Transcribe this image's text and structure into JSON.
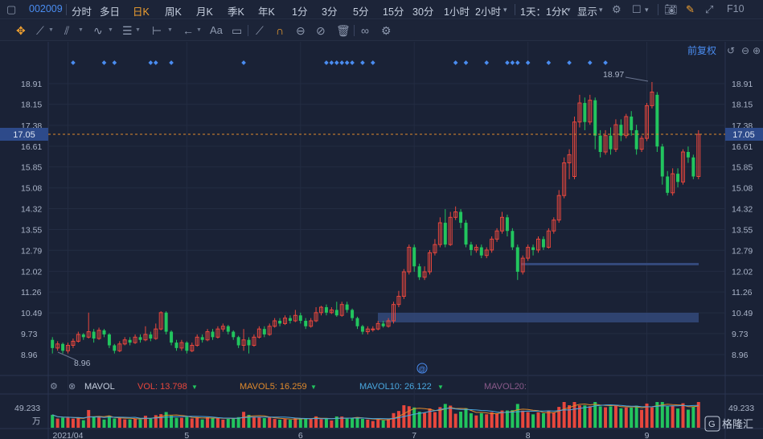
{
  "toolbar": {
    "code": "002009",
    "periods": [
      "分时",
      "多日",
      "日K",
      "周K",
      "月K",
      "季K",
      "年K",
      "1分",
      "3分",
      "5分",
      "15分",
      "30分",
      "1小时",
      "2小时"
    ],
    "active_period": "日K",
    "period_dropdown": "1天：1分K",
    "display_dropdown": "显示",
    "f10": "F10"
  },
  "drawbar": {
    "text_tool": "Aa"
  },
  "chart": {
    "adjust_label": "前复权",
    "current_price": "17.05",
    "current_price_value": 17.05,
    "high_label": "18.97",
    "low_label": "8.96",
    "colors": {
      "up": "#e8473d",
      "down": "#22c55e",
      "price_line": "#e08a2c",
      "bg": "#1a2236",
      "grid": "#232c42",
      "zone": "#3a5080",
      "accent": "#4a8cf0"
    }
  },
  "chart_data": {
    "type": "candlestick",
    "y_axis_ticks": [
      "18.91",
      "18.15",
      "17.38",
      "16.61",
      "15.85",
      "15.08",
      "14.32",
      "13.55",
      "12.79",
      "12.02",
      "11.26",
      "10.49",
      "9.73",
      "8.96"
    ],
    "y_axis_values": [
      18.91,
      18.15,
      17.38,
      16.61,
      15.85,
      15.08,
      14.32,
      13.55,
      12.79,
      12.02,
      11.26,
      10.49,
      9.73,
      8.96
    ],
    "x_axis_ticks": [
      "2021/04",
      "5",
      "6",
      "7",
      "8",
      "9"
    ],
    "candles": [
      [
        9.5,
        9.2,
        9.6,
        9.0
      ],
      [
        9.2,
        9.35,
        9.45,
        9.1
      ],
      [
        9.35,
        9.1,
        9.4,
        9.0
      ],
      [
        9.1,
        9.3,
        9.4,
        9.0
      ],
      [
        9.3,
        9.45,
        9.55,
        9.2
      ],
      [
        9.45,
        9.7,
        9.8,
        9.4
      ],
      [
        9.7,
        9.6,
        9.75,
        9.5
      ],
      [
        9.6,
        9.8,
        10.5,
        9.55
      ],
      [
        9.8,
        9.55,
        9.9,
        9.4
      ],
      [
        9.55,
        9.85,
        9.95,
        9.5
      ],
      [
        9.85,
        9.7,
        9.9,
        9.6
      ],
      [
        9.7,
        9.3,
        9.75,
        9.2
      ],
      [
        9.3,
        9.1,
        9.35,
        9.0
      ],
      [
        9.1,
        9.35,
        9.45,
        9.05
      ],
      [
        9.35,
        9.5,
        9.6,
        9.3
      ],
      [
        9.5,
        9.4,
        9.6,
        9.3
      ],
      [
        9.4,
        9.6,
        9.7,
        9.35
      ],
      [
        9.6,
        9.5,
        9.7,
        9.4
      ],
      [
        9.5,
        9.7,
        10.0,
        9.45
      ],
      [
        9.7,
        9.55,
        9.8,
        9.45
      ],
      [
        9.55,
        9.9,
        10.1,
        9.5
      ],
      [
        9.9,
        10.5,
        10.55,
        9.85
      ],
      [
        10.5,
        9.8,
        10.55,
        9.7
      ],
      [
        9.8,
        9.4,
        9.85,
        9.3
      ],
      [
        9.4,
        9.2,
        9.5,
        9.1
      ],
      [
        9.2,
        9.4,
        9.5,
        9.1
      ],
      [
        9.4,
        9.1,
        9.45,
        9.0
      ],
      [
        9.1,
        9.3,
        9.4,
        9.05
      ],
      [
        9.3,
        9.6,
        9.7,
        9.25
      ],
      [
        9.6,
        9.5,
        9.7,
        9.4
      ],
      [
        9.5,
        9.8,
        9.9,
        9.45
      ],
      [
        9.8,
        9.6,
        9.9,
        9.5
      ],
      [
        9.6,
        9.9,
        10.0,
        9.55
      ],
      [
        9.9,
        10.0,
        10.1,
        9.8
      ],
      [
        10.0,
        9.8,
        10.05,
        9.7
      ],
      [
        9.8,
        9.6,
        9.85,
        9.5
      ],
      [
        9.6,
        9.3,
        9.65,
        9.2
      ],
      [
        9.3,
        9.5,
        9.9,
        9.1
      ],
      [
        9.5,
        9.3,
        9.6,
        9.0
      ],
      [
        9.3,
        9.6,
        9.7,
        9.25
      ],
      [
        9.6,
        9.9,
        10.0,
        9.55
      ],
      [
        9.9,
        9.7,
        10.0,
        9.6
      ],
      [
        9.7,
        10.0,
        10.1,
        9.65
      ],
      [
        10.0,
        10.2,
        10.3,
        9.95
      ],
      [
        10.2,
        10.1,
        10.3,
        10.0
      ],
      [
        10.1,
        10.3,
        10.4,
        10.05
      ],
      [
        10.3,
        10.2,
        10.4,
        10.1
      ],
      [
        10.2,
        10.4,
        10.6,
        10.15
      ],
      [
        10.4,
        10.2,
        10.5,
        10.1
      ],
      [
        10.2,
        10.0,
        10.3,
        9.9
      ],
      [
        10.0,
        10.2,
        10.3,
        9.95
      ],
      [
        10.2,
        10.5,
        10.7,
        10.15
      ],
      [
        10.5,
        10.7,
        10.75,
        10.4
      ],
      [
        10.7,
        10.5,
        10.8,
        10.4
      ],
      [
        10.5,
        10.6,
        10.7,
        10.45
      ],
      [
        10.6,
        10.4,
        10.9,
        10.35
      ],
      [
        10.4,
        10.8,
        10.9,
        10.35
      ],
      [
        10.8,
        10.6,
        10.9,
        10.5
      ],
      [
        10.6,
        10.3,
        10.65,
        10.2
      ],
      [
        10.3,
        10.0,
        10.35,
        9.9
      ],
      [
        10.0,
        9.8,
        10.05,
        9.7
      ],
      [
        9.8,
        9.9,
        10.0,
        9.7
      ],
      [
        9.9,
        9.9,
        10.0,
        9.8
      ],
      [
        9.9,
        10.1,
        10.2,
        9.85
      ],
      [
        10.1,
        10.0,
        10.2,
        9.95
      ],
      [
        10.0,
        10.2,
        10.3,
        9.95
      ],
      [
        10.2,
        10.8,
        10.9,
        10.1
      ],
      [
        10.8,
        11.1,
        11.3,
        10.7
      ],
      [
        11.1,
        12.0,
        12.1,
        11.0
      ],
      [
        12.0,
        12.9,
        13.0,
        11.9
      ],
      [
        12.9,
        12.2,
        13.0,
        12.0
      ],
      [
        12.2,
        11.8,
        12.3,
        11.7
      ],
      [
        11.8,
        12.0,
        12.2,
        11.7
      ],
      [
        12.0,
        12.7,
        12.8,
        11.9
      ],
      [
        12.7,
        13.0,
        13.2,
        12.6
      ],
      [
        13.0,
        13.8,
        14.0,
        12.9
      ],
      [
        13.8,
        13.0,
        14.3,
        12.9
      ],
      [
        13.0,
        14.0,
        14.2,
        12.95
      ],
      [
        14.0,
        14.2,
        14.4,
        13.9
      ],
      [
        14.2,
        13.8,
        14.3,
        13.6
      ],
      [
        13.8,
        13.0,
        13.9,
        12.9
      ],
      [
        13.0,
        12.8,
        13.1,
        12.6
      ],
      [
        12.8,
        12.9,
        13.0,
        12.7
      ],
      [
        12.9,
        12.6,
        13.0,
        12.5
      ],
      [
        12.6,
        12.8,
        12.9,
        12.5
      ],
      [
        12.8,
        13.2,
        13.3,
        12.7
      ],
      [
        13.2,
        13.5,
        13.6,
        13.1
      ],
      [
        13.5,
        14.0,
        14.2,
        13.4
      ],
      [
        14.0,
        13.5,
        14.1,
        13.3
      ],
      [
        13.5,
        12.9,
        13.6,
        12.8
      ],
      [
        12.9,
        12.0,
        13.0,
        11.7
      ],
      [
        12.0,
        12.5,
        12.6,
        11.9
      ],
      [
        12.5,
        12.9,
        13.0,
        12.4
      ],
      [
        12.9,
        12.8,
        13.0,
        12.6
      ],
      [
        12.8,
        13.2,
        13.3,
        12.7
      ],
      [
        13.2,
        12.9,
        13.3,
        12.8
      ],
      [
        12.9,
        13.5,
        13.6,
        12.85
      ],
      [
        13.5,
        13.9,
        14.0,
        13.4
      ],
      [
        13.9,
        14.8,
        15.0,
        13.8
      ],
      [
        14.8,
        16.0,
        16.2,
        14.7
      ],
      [
        16.0,
        16.3,
        16.5,
        15.4
      ],
      [
        15.5,
        17.5,
        17.7,
        15.4
      ],
      [
        17.5,
        18.2,
        18.5,
        17.3
      ],
      [
        18.2,
        17.5,
        18.4,
        17.2
      ],
      [
        17.5,
        18.3,
        18.5,
        17.4
      ],
      [
        18.3,
        17.0,
        18.4,
        16.5
      ],
      [
        17.0,
        16.4,
        17.2,
        16.2
      ],
      [
        16.4,
        17.0,
        17.2,
        16.3
      ],
      [
        17.0,
        16.5,
        17.3,
        16.3
      ],
      [
        16.5,
        17.4,
        17.6,
        16.4
      ],
      [
        17.4,
        17.0,
        17.6,
        16.8
      ],
      [
        17.0,
        17.7,
        17.8,
        16.9
      ],
      [
        17.7,
        17.2,
        17.9,
        17.0
      ],
      [
        17.2,
        16.5,
        17.4,
        16.3
      ],
      [
        16.5,
        16.9,
        17.0,
        16.4
      ],
      [
        16.9,
        18.1,
        18.2,
        16.8
      ],
      [
        18.1,
        18.6,
        18.97,
        18.0
      ],
      [
        18.5,
        16.6,
        18.6,
        16.4
      ],
      [
        16.6,
        15.5,
        16.7,
        15.2
      ],
      [
        15.5,
        14.9,
        15.7,
        14.8
      ],
      [
        14.9,
        15.6,
        15.8,
        14.8
      ],
      [
        15.6,
        15.3,
        15.8,
        15.1
      ],
      [
        15.3,
        16.4,
        16.5,
        15.2
      ],
      [
        16.4,
        16.2,
        16.6,
        16.0
      ],
      [
        16.2,
        15.5,
        16.3,
        15.4
      ],
      [
        15.5,
        17.05,
        17.2,
        15.4
      ]
    ],
    "volume_ylabel": "49.233",
    "volume_unit": "万",
    "indicator": "MAVOL",
    "vol_label": "VOL: 13.798",
    "mavol5_label": "MAVOL5: 16.259",
    "mavol10_label": "MAVOL10: 26.122",
    "mavol20_label": "MAVOL20:"
  },
  "watermark": "格隆汇"
}
